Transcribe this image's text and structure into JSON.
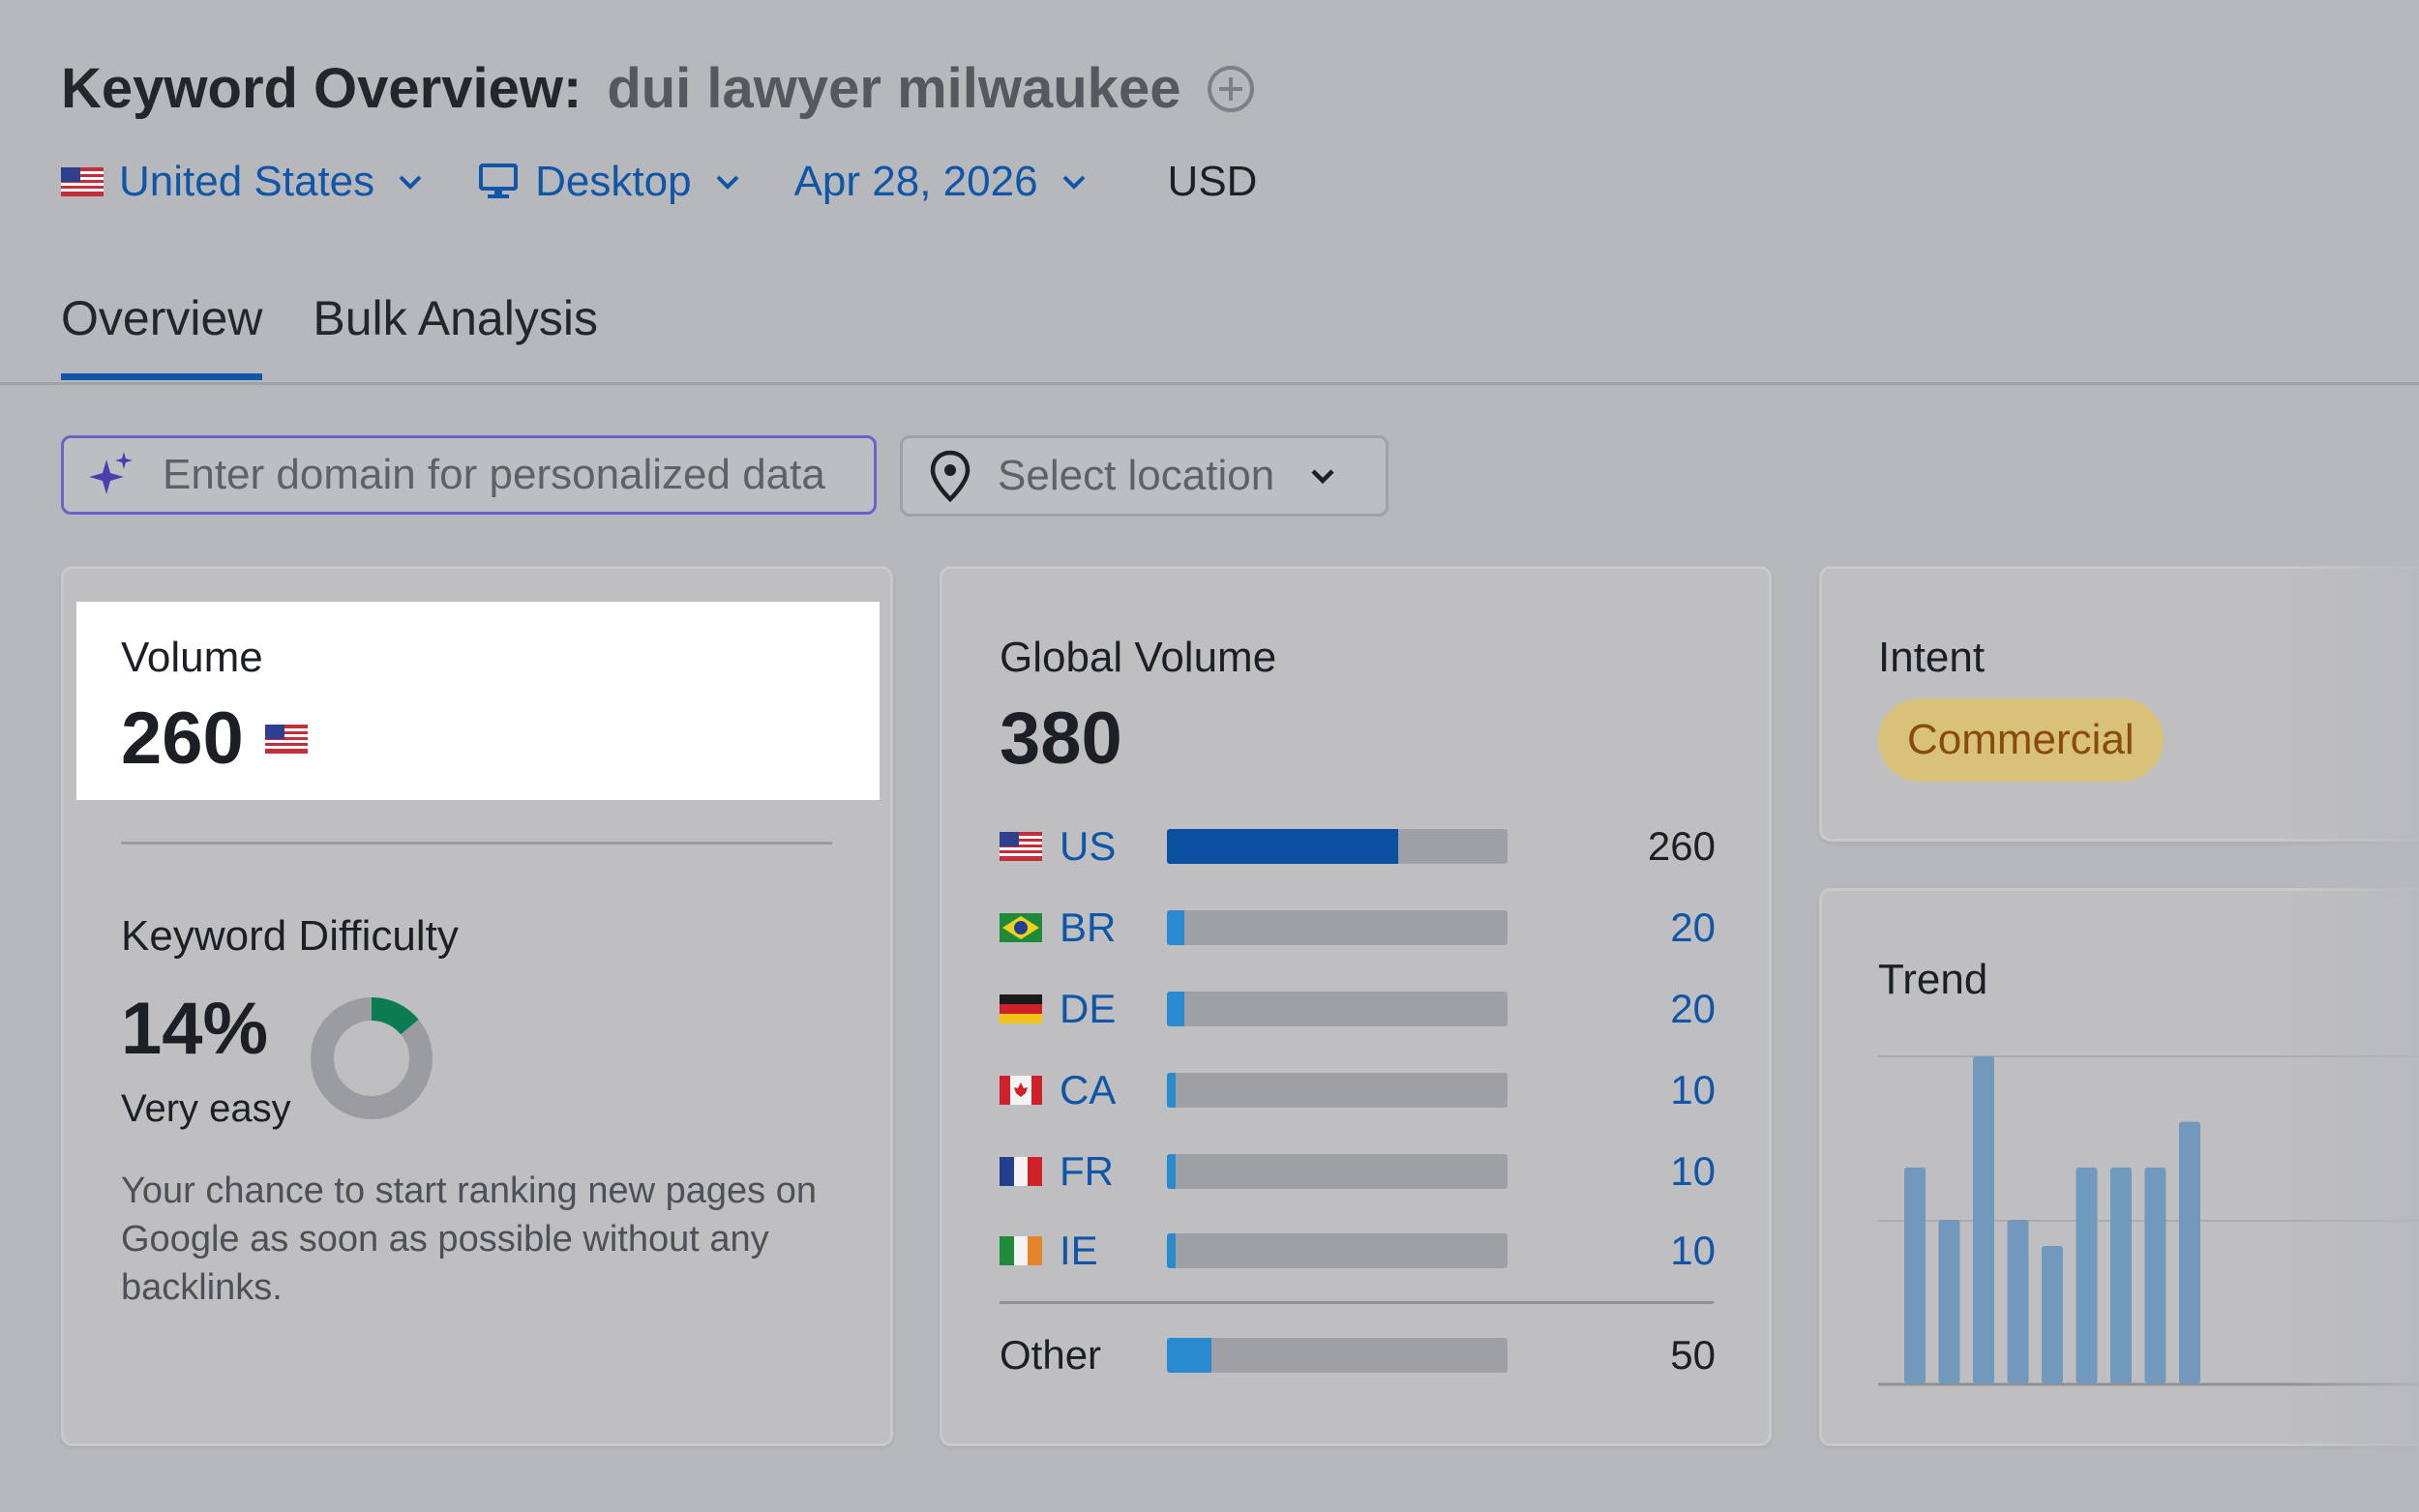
{
  "header": {
    "title_label": "Keyword Overview:",
    "keyword": "dui lawyer milwaukee"
  },
  "filters": {
    "country": "United States",
    "device": "Desktop",
    "date": "Apr 28, 2026",
    "currency": "USD"
  },
  "tabs": [
    {
      "label": "Overview",
      "active": true
    },
    {
      "label": "Bulk Analysis",
      "active": false
    }
  ],
  "search": {
    "domain_placeholder": "Enter domain for personalized data",
    "location_placeholder": "Select location"
  },
  "volume": {
    "label": "Volume",
    "value": "260"
  },
  "keyword_difficulty": {
    "label": "Keyword Difficulty",
    "value": "14%",
    "percent": 14,
    "level": "Very easy",
    "description": "Your chance to start ranking new pages on Google as soon as possible without any backlinks."
  },
  "global_volume": {
    "label": "Global Volume",
    "value": "380",
    "rows": [
      {
        "code": "US",
        "value": "260",
        "share": 0.68
      },
      {
        "code": "BR",
        "value": "20",
        "share": 0.05
      },
      {
        "code": "DE",
        "value": "20",
        "share": 0.05
      },
      {
        "code": "CA",
        "value": "10",
        "share": 0.025
      },
      {
        "code": "FR",
        "value": "10",
        "share": 0.025
      },
      {
        "code": "IE",
        "value": "10",
        "share": 0.025
      }
    ],
    "other": {
      "label": "Other",
      "value": "50",
      "share": 0.13
    }
  },
  "intent": {
    "label": "Intent",
    "badge": "Commercial"
  },
  "trend": {
    "label": "Trend",
    "chart_data": {
      "type": "bar",
      "values": [
        0.66,
        0.5,
        1.0,
        0.5,
        0.42,
        0.66,
        0.66,
        0.66,
        0.8
      ],
      "ylim": [
        0,
        1
      ]
    }
  },
  "colors": {
    "link_blue": "#0f55a8",
    "bar_blue": "#2a8ad0",
    "bar_dark": "#0b4fa0",
    "kd_green": "#0b7b52",
    "intent_bg": "#d8c27a",
    "intent_text": "#8a4b0a"
  }
}
